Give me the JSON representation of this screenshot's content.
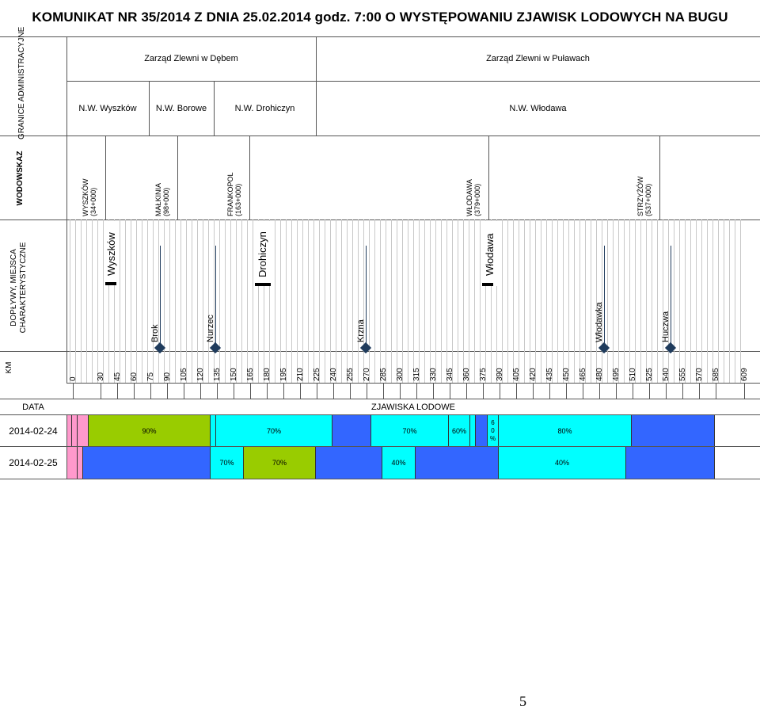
{
  "title": "KOMUNIKAT NR 35/2014 Z DNIA 25.02.2014 godz. 7:00 O WYSTĘPOWANIU ZJAWISK LODOWYCH NA BUGU",
  "row_headers": {
    "granice": "GRANICE ADMINISTRACYJNE",
    "wodowskaz": "WODOWSKAZ",
    "doplywy": "DOPŁYWY, MIEJSCA CHARAKTERYSTYCZNE",
    "km": "KM",
    "data": "DATA",
    "zjawiska": "ZJAWISKA LODOWE"
  },
  "zarzady": [
    "Zarząd Zlewni w Dębem",
    "Zarząd Zlewni w Puławach"
  ],
  "nadzory": [
    "N.W. Wyszków",
    "N.W. Borowe",
    "N.W. Drohiczyn",
    "N.W. Włodawa"
  ],
  "gauges": [
    {
      "name": "WYSZKÓW",
      "km": "(34+000)"
    },
    {
      "name": "MAŁKINIA",
      "km": "(98+000)"
    },
    {
      "name": "FRANKOPOL",
      "km": "(163+000)"
    },
    {
      "name": "WŁODAWA",
      "km": "(379+000)"
    },
    {
      "name": "STRZYŻÓW",
      "km": "(537+000)"
    }
  ],
  "characteristic_places": [
    "Wyszków",
    "Drohiczyn",
    "Włodawa"
  ],
  "tributaries": [
    "Brok",
    "Nurzec",
    "Krzna",
    "Włodawka",
    "Huczwa"
  ],
  "km_ticks": [
    "0",
    "30",
    "45",
    "60",
    "75",
    "90",
    "105",
    "120",
    "135",
    "150",
    "165",
    "180",
    "195",
    "210",
    "225",
    "240",
    "255",
    "270",
    "285",
    "300",
    "315",
    "330",
    "345",
    "360",
    "375",
    "390",
    "405",
    "420",
    "435",
    "450",
    "465",
    "480",
    "495",
    "510",
    "525",
    "540",
    "555",
    "570",
    "585",
    "609"
  ],
  "dates": [
    "2014-02-24",
    "2014-02-25"
  ],
  "ice_labels_row1": [
    "90%",
    "70%",
    "70%",
    "60%",
    "6",
    "0",
    "%",
    "80%"
  ],
  "ice_labels_row2": [
    "70%",
    "70%",
    "40%",
    "40%"
  ],
  "colors": {
    "pink": "#ff99cc",
    "green": "#99cc00",
    "cyan": "#00ffff",
    "blue": "#3366ff"
  },
  "page_number": "5"
}
